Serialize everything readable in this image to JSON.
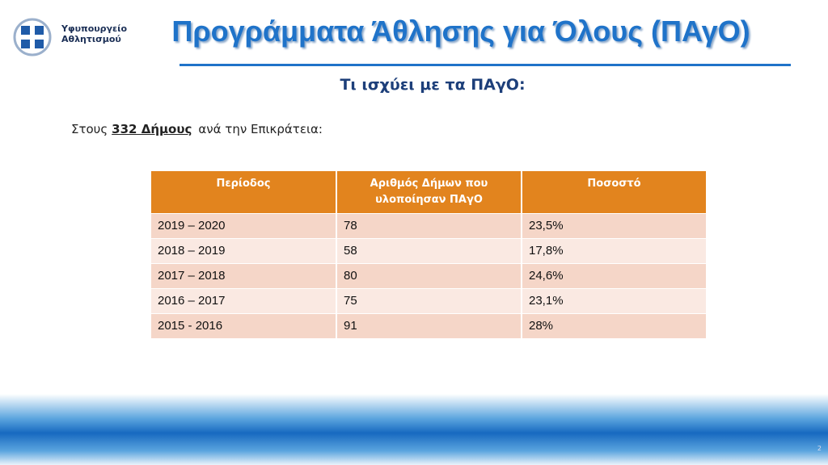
{
  "logo": {
    "line1": "Υφυπουργείο",
    "line2": "Αθλητισμού"
  },
  "header": {
    "title": "Προγράμματα Άθλησης για Όλους (ΠΑγΟ)"
  },
  "subtitle": "Τι ισχύει με τα ΠΑγΟ:",
  "intro": {
    "before": "Στους",
    "emphasis": "332 Δήμους",
    "after": "ανά την Επικράτεια:"
  },
  "table": {
    "headers": [
      "Περίοδος",
      "Αριθμός Δήμων που υλοποίησαν ΠΑγΟ",
      "Ποσοστό"
    ],
    "rows": [
      [
        "2019 – 2020",
        "78",
        "23,5%"
      ],
      [
        "2018 – 2019",
        "58",
        "17,8%"
      ],
      [
        "2017 – 2018",
        "80",
        "24,6%"
      ],
      [
        "2016 – 2017",
        "75",
        "23,1%"
      ],
      [
        "2015 - 2016",
        "91",
        "28%"
      ]
    ]
  },
  "page_number": "2"
}
